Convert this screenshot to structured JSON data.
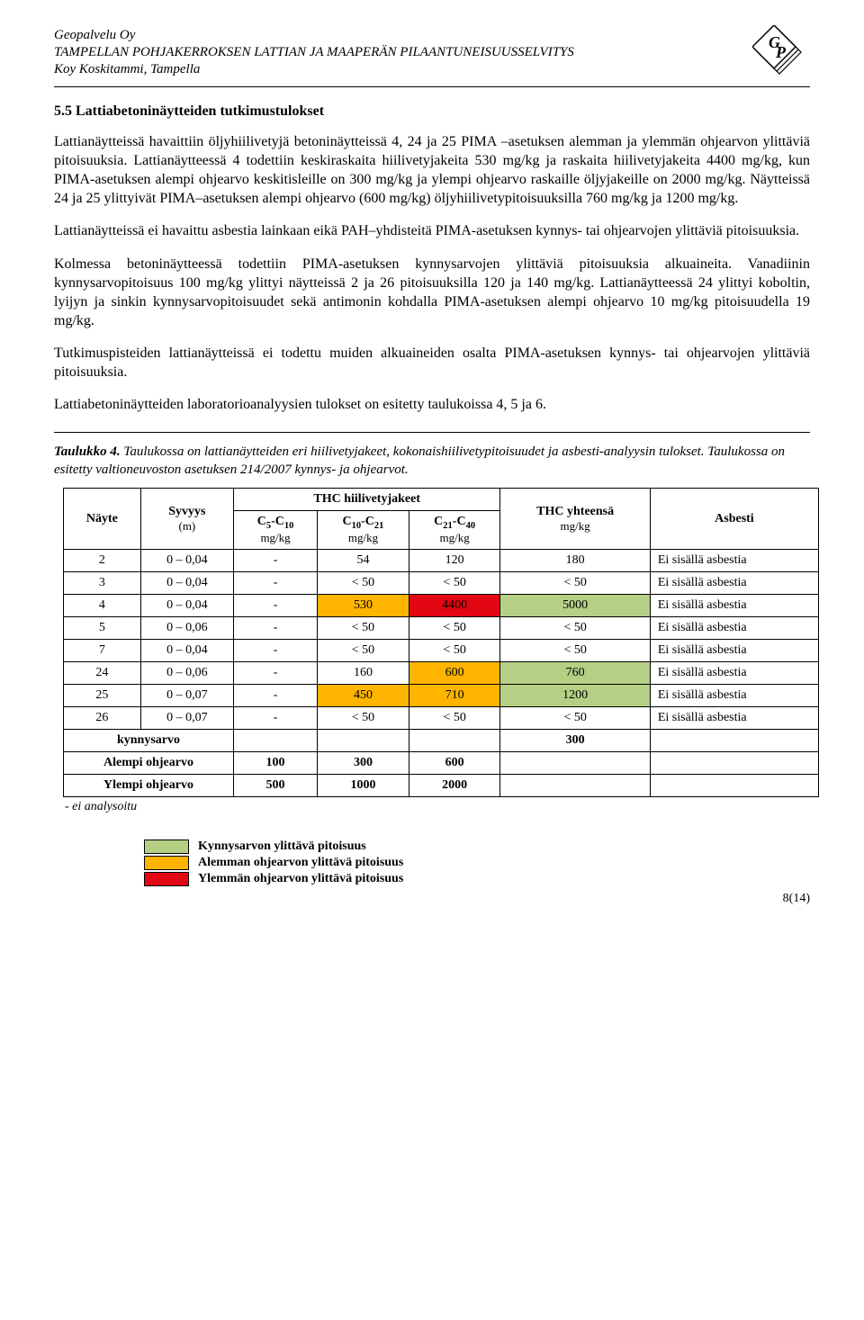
{
  "header": {
    "line1": "Geopalvelu Oy",
    "line2": "TAMPELLAN POHJAKERROKSEN LATTIAN JA MAAPERÄN PILAANTUNEISUUSSELVITYS",
    "line3": "Koy Koskitammi, Tampella"
  },
  "section_number": "5.5",
  "section_title": "Lattiabetoninäytteiden tutkimustulokset",
  "paragraphs": [
    "Lattianäytteissä havaittiin öljyhiilivetyjä betoninäytteissä 4, 24 ja 25 PIMA –asetuksen alemman ja ylemmän ohjearvon ylittäviä pitoisuuksia. Lattianäytteessä 4 todettiin keskiraskaita hiilivetyjakeita 530 mg/kg ja raskaita hiilivetyjakeita 4400 mg/kg, kun PIMA-asetuksen alempi ohjearvo keskitisleille on 300 mg/kg ja ylempi ohjearvo raskaille öljyjakeille on 2000 mg/kg. Näytteissä 24 ja 25 ylittyivät PIMA–asetuksen alempi ohjearvo (600 mg/kg) öljyhiilivetypitoisuuksilla 760 mg/kg ja 1200 mg/kg.",
    "Lattianäytteissä ei havaittu asbestia lainkaan eikä PAH–yhdisteitä PIMA-asetuksen kynnys- tai ohjearvojen ylittäviä pitoisuuksia.",
    "Kolmessa betoninäytteessä todettiin PIMA-asetuksen kynnysarvojen ylittäviä pitoisuuksia alkuaineita. Vanadiinin kynnysarvopitoisuus 100 mg/kg ylittyi näytteissä 2 ja 26 pitoisuuksilla 120 ja 140 mg/kg. Lattianäytteessä 24 ylittyi koboltin, lyijyn ja sinkin kynnysarvopitoisuudet sekä antimonin kohdalla PIMA-asetuksen alempi ohjearvo 10 mg/kg pitoisuudella 19 mg/kg.",
    "Tutkimuspisteiden lattianäytteissä ei todettu muiden alkuaineiden osalta PIMA-asetuksen kynnys- tai ohjearvojen ylittäviä pitoisuuksia.",
    "Lattiabetoninäytteiden laboratorioanalyysien tulokset on esitetty taulukoissa 4, 5 ja 6."
  ],
  "table_caption": {
    "label": "Taulukko 4.",
    "text": "Taulukossa on lattianäytteiden eri hiilivetyjakeet, kokonaishiilivetypitoisuudet ja asbesti-analyysin tulokset. Taulukossa on esitetty valtioneuvoston asetuksen 214/2007 kynnys- ja ohjearvot."
  },
  "table": {
    "headers": {
      "sample": "Näyte",
      "depth": "Syvyys",
      "depth_unit": "(m)",
      "thc_group": "THC hiilivetyjakeet",
      "thc_total": "THC yhteensä",
      "asbestos": "Asbesti",
      "c5c10": "C₅-C₁₀",
      "c10c21": "C₁₀-C₂₁",
      "c21c40": "C₂₁-C₄₀",
      "unit": "mg/kg"
    },
    "rows": [
      {
        "sample": "2",
        "depth": "0 – 0,04",
        "c5": "-",
        "c10": "54",
        "c21": "120",
        "tot": "180",
        "asb": "Ei sisällä asbestia",
        "hl": {}
      },
      {
        "sample": "3",
        "depth": "0 – 0,04",
        "c5": "-",
        "c10": "< 50",
        "c21": "< 50",
        "tot": "< 50",
        "asb": "Ei sisällä asbestia",
        "hl": {}
      },
      {
        "sample": "4",
        "depth": "0 – 0,04",
        "c5": "-",
        "c10": "530",
        "c21": "4400",
        "tot": "5000",
        "asb": "Ei sisällä asbestia",
        "hl": {
          "c10": "#ffb400",
          "c21": "#e30613",
          "tot": "#b5cf85"
        }
      },
      {
        "sample": "5",
        "depth": "0 – 0,06",
        "c5": "-",
        "c10": "< 50",
        "c21": "< 50",
        "tot": "< 50",
        "asb": "Ei sisällä asbestia",
        "hl": {}
      },
      {
        "sample": "7",
        "depth": "0 – 0,04",
        "c5": "-",
        "c10": "< 50",
        "c21": "< 50",
        "tot": "< 50",
        "asb": "Ei sisällä asbestia",
        "hl": {}
      },
      {
        "sample": "24",
        "depth": "0 – 0,06",
        "c5": "-",
        "c10": "160",
        "c21": "600",
        "tot": "760",
        "asb": "Ei sisällä asbestia",
        "hl": {
          "c21": "#ffb400",
          "tot": "#b5cf85"
        }
      },
      {
        "sample": "25",
        "depth": "0 – 0,07",
        "c5": "-",
        "c10": "450",
        "c21": "710",
        "tot": "1200",
        "asb": "Ei sisällä asbestia",
        "hl": {
          "c10": "#ffb400",
          "c21": "#ffb400",
          "tot": "#b5cf85"
        }
      },
      {
        "sample": "26",
        "depth": "0 – 0,07",
        "c5": "-",
        "c10": "< 50",
        "c21": "< 50",
        "tot": "< 50",
        "asb": "Ei sisällä asbestia",
        "hl": {}
      }
    ],
    "footer_rows": [
      {
        "label": "kynnysarvo",
        "c5": "",
        "c10": "",
        "c21": "",
        "tot": "300"
      },
      {
        "label": "Alempi ohjearvo",
        "c5": "100",
        "c10": "300",
        "c21": "600",
        "tot": ""
      },
      {
        "label": "Ylempi ohjearvo",
        "c5": "500",
        "c10": "1000",
        "c21": "2000",
        "tot": ""
      }
    ],
    "footnote": "- ei analysoitu"
  },
  "legend": [
    {
      "color": "#b5cf85",
      "label": "Kynnysarvon ylittävä pitoisuus"
    },
    {
      "color": "#ffb400",
      "label": "Alemman ohjearvon ylittävä pitoisuus"
    },
    {
      "color": "#e30613",
      "label": "Ylemmän ohjearvon ylittävä pitoisuus"
    }
  ],
  "page_number": "8(14)"
}
